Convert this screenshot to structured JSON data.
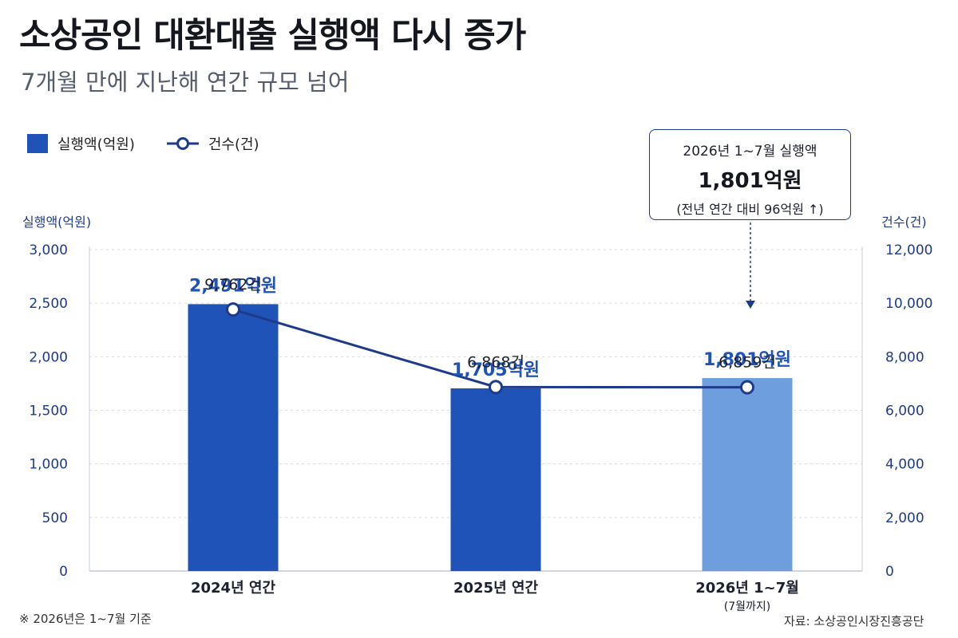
{
  "title": "소상공인 대환대출 실행액 다시 증가",
  "subtitle": "7개월 만에 지난해 연간 규모 넘어",
  "legend": {
    "bar_label": "실행액(억원)",
    "line_label": "건수(건)"
  },
  "axes": {
    "left_title": "실행액(억원)",
    "right_title": "건수(건)",
    "left_ticks": [
      "0",
      "500",
      "1,000",
      "1,500",
      "2,000",
      "2,500",
      "3,000"
    ],
    "right_ticks": [
      "0",
      "2,000",
      "4,000",
      "6,000",
      "8,000",
      "10,000",
      "12,000"
    ]
  },
  "callout": {
    "title": "2026년 1~7월 실행액",
    "value": "1,801억원",
    "note": "(전년 연간 대비 96억원 ↑)"
  },
  "footnote": "※ 2026년은 1~7월 기준",
  "source": "자료: 소상공인시장진흥공단",
  "colors": {
    "bar_primary": "#1f53b8",
    "bar_highlight": "#6f9ede",
    "line": "#1e3a8a",
    "tick_text": "#1e3a8a",
    "grid": "#d6dbe6"
  },
  "chart_data": {
    "type": "bar",
    "categories": [
      "2024년 연간",
      "2025년 연간",
      "2026년 1~7월"
    ],
    "category_notes": [
      "",
      "",
      "(7월까지)"
    ],
    "series": [
      {
        "name": "실행액(억원)",
        "type": "bar",
        "axis": "left",
        "values": [
          2491,
          1705,
          1801
        ],
        "labels": [
          "2,491억원",
          "1,705억원",
          "1,801억원"
        ]
      },
      {
        "name": "건수(건)",
        "type": "line",
        "axis": "right",
        "values": [
          9762,
          6868,
          6859
        ],
        "labels": [
          "9,762건",
          "6,868건",
          "6,859건"
        ]
      }
    ],
    "ylim_left": [
      0,
      3000
    ],
    "ylim_right": [
      0,
      12000
    ],
    "ylabel": "실행액(억원)",
    "ylabel_right": "건수(건)",
    "grid": true,
    "legend_position": "top-left"
  }
}
